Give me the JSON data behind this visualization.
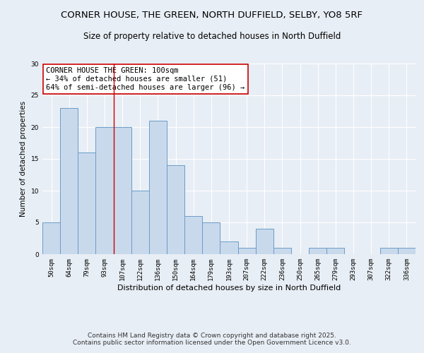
{
  "title1": "CORNER HOUSE, THE GREEN, NORTH DUFFIELD, SELBY, YO8 5RF",
  "title2": "Size of property relative to detached houses in North Duffield",
  "xlabel": "Distribution of detached houses by size in North Duffield",
  "ylabel": "Number of detached properties",
  "categories": [
    "50sqm",
    "64sqm",
    "79sqm",
    "93sqm",
    "107sqm",
    "122sqm",
    "136sqm",
    "150sqm",
    "164sqm",
    "179sqm",
    "193sqm",
    "207sqm",
    "222sqm",
    "236sqm",
    "250sqm",
    "265sqm",
    "279sqm",
    "293sqm",
    "307sqm",
    "322sqm",
    "336sqm"
  ],
  "values": [
    5,
    23,
    16,
    20,
    20,
    10,
    21,
    14,
    6,
    5,
    2,
    1,
    4,
    1,
    0,
    1,
    1,
    0,
    0,
    1,
    1
  ],
  "bar_color": "#c9d9ec",
  "bar_edge_color": "#6a9cc9",
  "background_color": "#e8eef5",
  "grid_color": "#ffffff",
  "vline_x": 3.5,
  "vline_color": "#cc0000",
  "ylim": [
    0,
    30
  ],
  "annotation_text": "CORNER HOUSE THE GREEN: 100sqm\n← 34% of detached houses are smaller (51)\n64% of semi-detached houses are larger (96) →",
  "annotation_box_color": "#ffffff",
  "annotation_box_edge": "#cc0000",
  "footer_text": "Contains HM Land Registry data © Crown copyright and database right 2025.\nContains public sector information licensed under the Open Government Licence v3.0.",
  "title_fontsize": 9.5,
  "subtitle_fontsize": 8.5,
  "annotation_fontsize": 7.5,
  "footer_fontsize": 6.5,
  "ylabel_fontsize": 7.5,
  "xlabel_fontsize": 8,
  "tick_fontsize": 6.5
}
